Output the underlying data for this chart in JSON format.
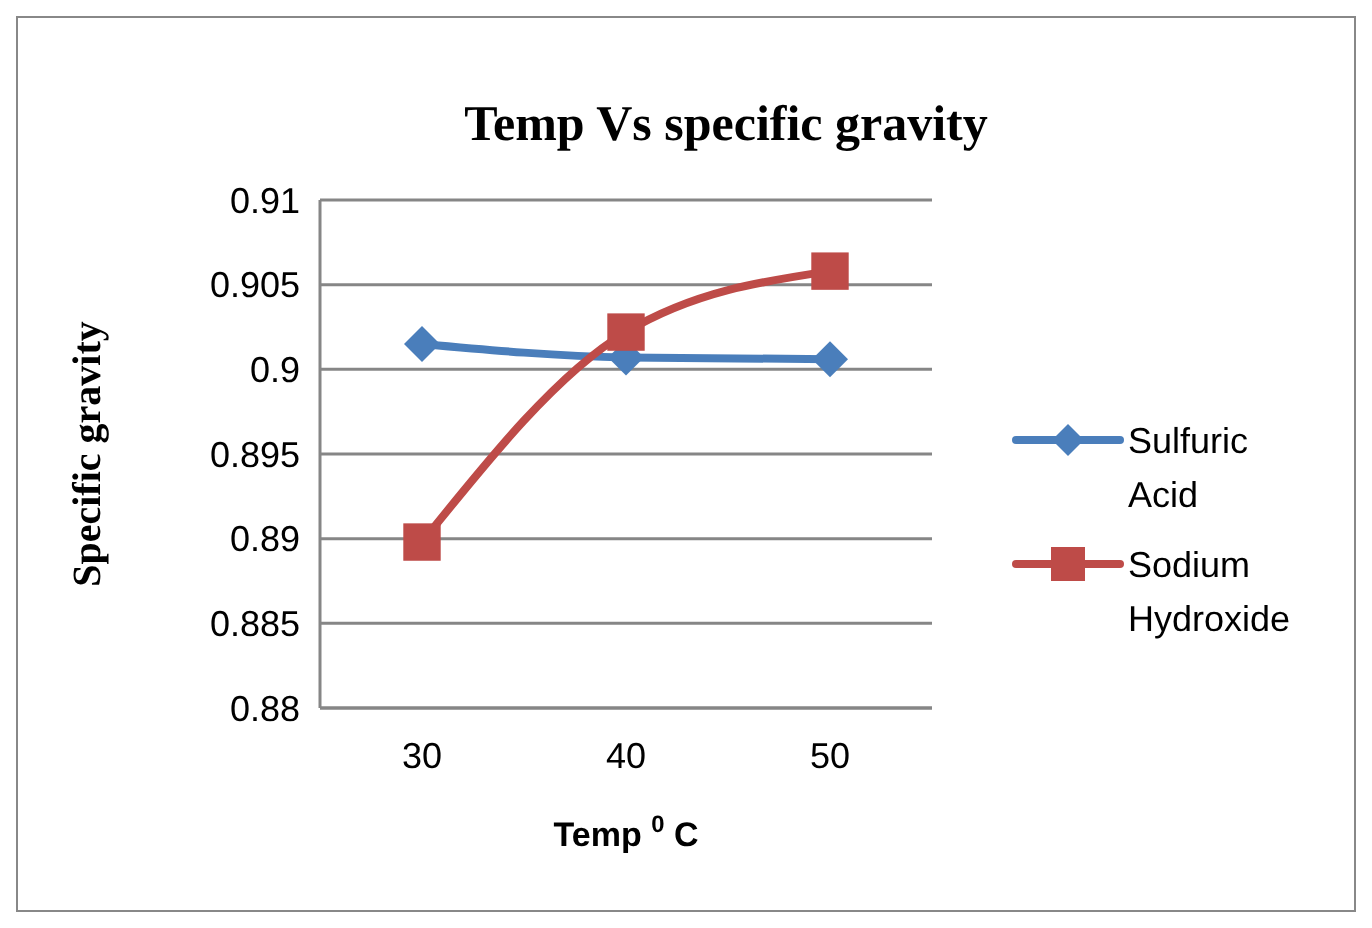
{
  "chart_data": {
    "type": "line",
    "title": "Temp Vs specific gravity",
    "xlabel": "Temp $^{0}$ C",
    "ylabel": "Specific gravity",
    "categories": [
      "30",
      "40",
      "50"
    ],
    "series": [
      {
        "name": "Sulfuric Acid",
        "color": "#4a7ebb",
        "marker": "diamond",
        "values": [
          0.9015,
          0.9007,
          0.9006
        ]
      },
      {
        "name": "Sodium Hydroxide",
        "color": "#be4b48",
        "marker": "square",
        "values": [
          0.8898,
          0.9022,
          0.9058
        ]
      }
    ],
    "ylim": [
      0.88,
      0.91
    ],
    "yticks": [
      0.88,
      0.885,
      0.89,
      0.895,
      0.9,
      0.905,
      0.91
    ],
    "grid": "y",
    "legend": "right",
    "line_style": "solid"
  }
}
